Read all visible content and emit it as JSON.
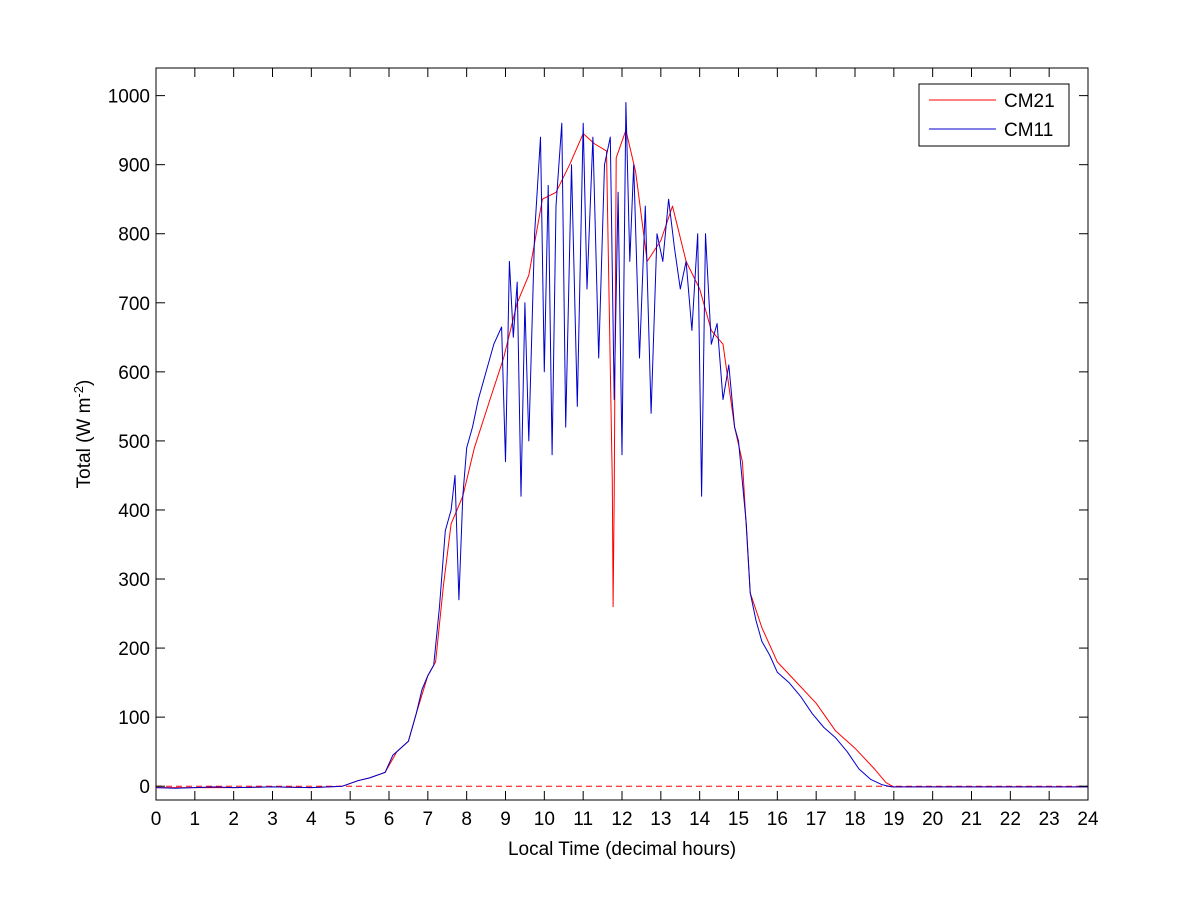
{
  "chart_data": {
    "type": "line",
    "title": "",
    "xlabel": "Local Time (decimal hours)",
    "ylabel": {
      "base": "Total (W m",
      "superscript": "-2",
      "close": ")"
    },
    "xlim": [
      0,
      24
    ],
    "ylim": [
      -20,
      1040
    ],
    "xticks": [
      0,
      1,
      2,
      3,
      4,
      5,
      6,
      7,
      8,
      9,
      10,
      11,
      12,
      13,
      14,
      15,
      16,
      17,
      18,
      19,
      20,
      21,
      22,
      23,
      24
    ],
    "yticks": [
      0,
      100,
      200,
      300,
      400,
      500,
      600,
      700,
      800,
      900,
      1000
    ],
    "grid": false,
    "legend_position": "top-right",
    "reference_line": {
      "y": 0,
      "color": "#ff0000",
      "style": "dashed"
    },
    "series": [
      {
        "name": "CM21",
        "color": "#ff0000",
        "x": [
          0,
          1,
          2,
          3,
          4,
          4.8,
          5.2,
          5.5,
          5.9,
          6.2,
          6.5,
          6.7,
          7.0,
          7.2,
          7.4,
          7.6,
          7.9,
          8.2,
          8.6,
          8.95,
          9.3,
          9.6,
          9.95,
          10.3,
          10.65,
          11.0,
          11.3,
          11.6,
          11.75,
          11.77,
          11.8,
          11.85,
          12.1,
          12.35,
          12.65,
          13.0,
          13.3,
          13.65,
          14.0,
          14.3,
          14.6,
          14.9,
          15.1,
          15.3,
          15.6,
          16.0,
          16.5,
          17.0,
          17.5,
          18.0,
          18.5,
          18.8,
          19.0,
          20,
          21,
          22,
          23,
          24
        ],
        "y": [
          -2,
          -2,
          -2,
          -1,
          -2,
          0,
          8,
          12,
          20,
          50,
          65,
          105,
          160,
          180,
          290,
          380,
          420,
          490,
          560,
          620,
          700,
          740,
          850,
          860,
          900,
          945,
          930,
          920,
          440,
          260,
          420,
          910,
          950,
          890,
          760,
          790,
          840,
          760,
          720,
          660,
          640,
          520,
          470,
          280,
          230,
          180,
          150,
          120,
          80,
          55,
          25,
          5,
          -1,
          -1,
          -1,
          -1,
          -1,
          -1
        ]
      },
      {
        "name": "CM11",
        "color": "#0000cc",
        "x": [
          0,
          0.5,
          1,
          1.5,
          2,
          3,
          4,
          4.8,
          5.2,
          5.5,
          5.9,
          6.1,
          6.3,
          6.5,
          6.7,
          6.85,
          7.0,
          7.15,
          7.3,
          7.45,
          7.6,
          7.7,
          7.8,
          7.9,
          8.0,
          8.15,
          8.3,
          8.5,
          8.7,
          8.9,
          9.0,
          9.1,
          9.2,
          9.3,
          9.4,
          9.5,
          9.6,
          9.75,
          9.9,
          10.0,
          10.1,
          10.2,
          10.3,
          10.45,
          10.55,
          10.7,
          10.85,
          11.0,
          11.1,
          11.25,
          11.4,
          11.55,
          11.7,
          11.8,
          11.9,
          12.0,
          12.1,
          12.2,
          12.3,
          12.45,
          12.6,
          12.75,
          12.9,
          13.05,
          13.2,
          13.35,
          13.5,
          13.65,
          13.8,
          13.95,
          14.05,
          14.15,
          14.3,
          14.45,
          14.6,
          14.75,
          14.9,
          15.0,
          15.1,
          15.2,
          15.3,
          15.45,
          15.6,
          15.8,
          16.0,
          16.3,
          16.6,
          16.9,
          17.2,
          17.5,
          17.8,
          18.1,
          18.4,
          18.7,
          18.95,
          19.1,
          20,
          21,
          22,
          23,
          24
        ],
        "y": [
          -2,
          -3,
          -2,
          -1,
          -2,
          -1,
          -2,
          0,
          8,
          12,
          20,
          45,
          55,
          65,
          105,
          140,
          160,
          175,
          260,
          370,
          400,
          450,
          270,
          420,
          490,
          520,
          560,
          600,
          640,
          665,
          470,
          760,
          650,
          730,
          420,
          700,
          500,
          800,
          940,
          600,
          870,
          480,
          840,
          960,
          520,
          900,
          550,
          960,
          720,
          940,
          620,
          900,
          940,
          560,
          860,
          480,
          990,
          760,
          900,
          620,
          840,
          540,
          800,
          760,
          850,
          780,
          720,
          760,
          660,
          800,
          420,
          800,
          640,
          670,
          560,
          610,
          520,
          500,
          440,
          380,
          280,
          240,
          210,
          190,
          165,
          150,
          130,
          105,
          85,
          70,
          50,
          25,
          10,
          2,
          -1,
          -1,
          -1,
          -1,
          -1,
          -1,
          -1
        ]
      }
    ]
  }
}
